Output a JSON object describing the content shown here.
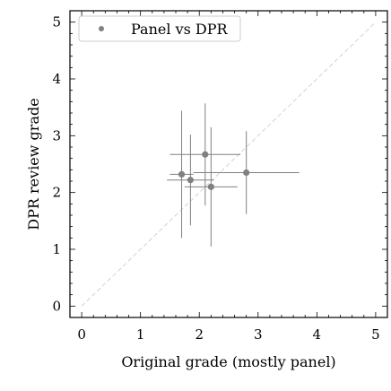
{
  "chart_data": {
    "type": "scatter",
    "xlabel": "Original grade (mostly panel)",
    "ylabel": "DPR review grade",
    "xlim": [
      -0.2,
      5.2
    ],
    "ylim": [
      -0.2,
      5.2
    ],
    "x_ticks": [
      "0",
      "1",
      "2",
      "3",
      "4",
      "5"
    ],
    "y_ticks": [
      "0",
      "1",
      "2",
      "3",
      "4",
      "5"
    ],
    "grid": false,
    "legend": {
      "placement": "top-left",
      "entries": [
        "Panel vs DPR"
      ]
    },
    "reference_line": "y = x",
    "series": [
      {
        "name": "Panel vs DPR",
        "color": "#808080",
        "points": [
          {
            "x": 1.7,
            "y": 2.32,
            "xerr": 0.2,
            "yerr": 1.12
          },
          {
            "x": 1.85,
            "y": 2.22,
            "xerr": 0.4,
            "yerr": 0.8
          },
          {
            "x": 2.1,
            "y": 2.67,
            "xerr": 0.6,
            "yerr": 0.9
          },
          {
            "x": 2.2,
            "y": 2.1,
            "xerr": 0.45,
            "yerr": 1.05
          },
          {
            "x": 2.8,
            "y": 2.35,
            "xerr": 0.9,
            "yerr": 0.73
          }
        ]
      }
    ]
  }
}
